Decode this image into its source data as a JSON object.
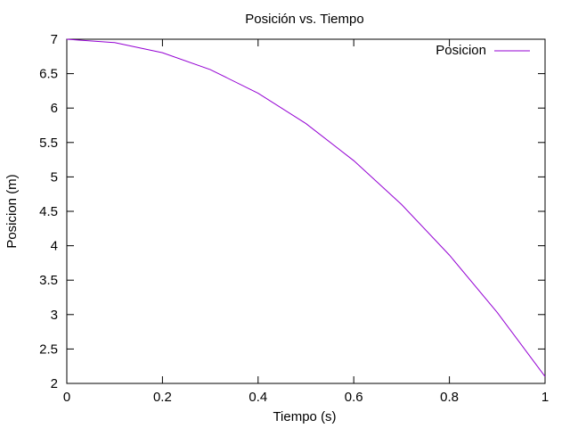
{
  "chart_data": {
    "type": "line",
    "title": "Posición vs. Tiempo",
    "xlabel": "Tiempo (s)",
    "ylabel": "Posicion (m)",
    "xlim": [
      0,
      1
    ],
    "ylim": [
      2,
      7
    ],
    "xticks": [
      0,
      0.2,
      0.4,
      0.6,
      0.8,
      1
    ],
    "xtick_labels": [
      "0",
      "0.2",
      "0.4",
      "0.6",
      "0.8",
      "1"
    ],
    "yticks": [
      2,
      2.5,
      3,
      3.5,
      4,
      4.5,
      5,
      5.5,
      6,
      6.5,
      7
    ],
    "ytick_labels": [
      "2",
      "2.5",
      "3",
      "3.5",
      "4",
      "4.5",
      "5",
      "5.5",
      "6",
      "6.5",
      "7"
    ],
    "grid": false,
    "legend_position": "top-right",
    "series": [
      {
        "name": "Posicion",
        "color": "#9400d3",
        "x": [
          0,
          0.1,
          0.2,
          0.3,
          0.4,
          0.5,
          0.6,
          0.7,
          0.8,
          0.9,
          1.0
        ],
        "y": [
          7.0,
          6.951,
          6.804,
          6.559,
          6.216,
          5.775,
          5.236,
          4.599,
          3.864,
          3.031,
          2.1
        ]
      }
    ]
  }
}
